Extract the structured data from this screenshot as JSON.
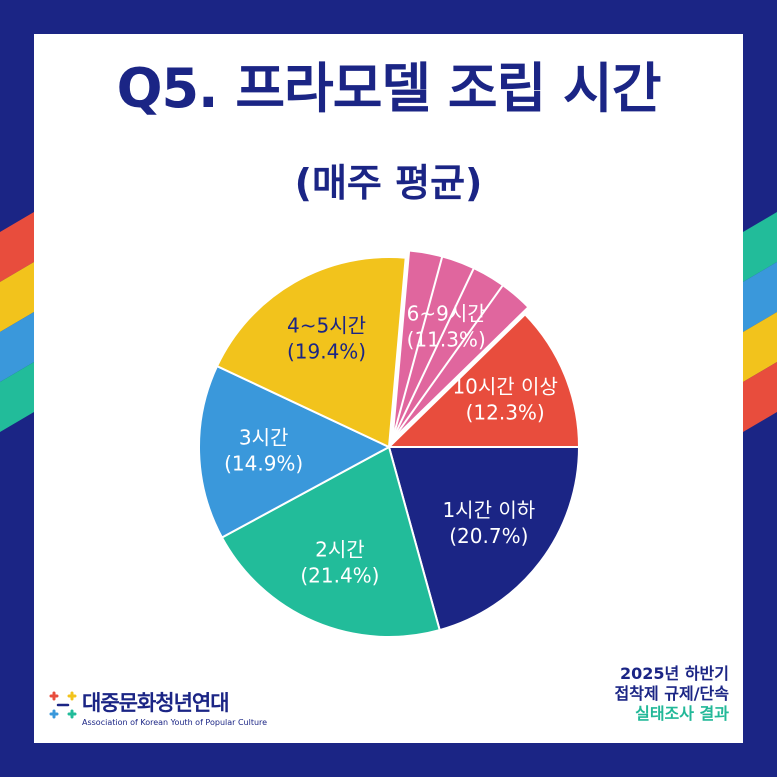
{
  "header": {
    "title": "Q5. 프라모델 조립 시간",
    "subtitle": "(매주 평균)"
  },
  "chart_data": {
    "type": "pie",
    "categories": [
      "1시간 이하",
      "2시간",
      "3시간",
      "4~5시간",
      "6~9시간",
      "10시간 이상"
    ],
    "values": [
      20.7,
      21.4,
      14.9,
      19.4,
      11.3,
      12.3
    ],
    "labels": [
      [
        "1시간 이하",
        "(20.7%)"
      ],
      [
        "2시간",
        "(21.4%)"
      ],
      [
        "3시간",
        "(14.9%)"
      ],
      [
        "4~5시간",
        "(19.4%)"
      ],
      [
        "6~9시간",
        "(11.3%)"
      ],
      [
        "10시간 이상",
        "(12.3%)"
      ]
    ],
    "colors": [
      "#1b2585",
      "#22bc9a",
      "#3a98db",
      "#f2c31c",
      "#e0669e",
      "#e84d3d"
    ],
    "label_colors": [
      "#ffffff",
      "#ffffff",
      "#ffffff",
      "#1b2585",
      "#ffffff",
      "#ffffff"
    ],
    "exploded_slice": "6~9시간"
  },
  "footer": {
    "org_name": "대중문화청년연대",
    "org_english": "Association of Korean Youth of Popular Culture",
    "report_line1": "2025년 하반기",
    "report_line2": "접착제 규제/단속",
    "report_line3": "실태조사 결과"
  },
  "colors": {
    "navy": "#1b2585",
    "red": "#e84d3d",
    "yellow": "#f2c31c",
    "blue": "#3a98db",
    "green": "#22bc9a"
  }
}
